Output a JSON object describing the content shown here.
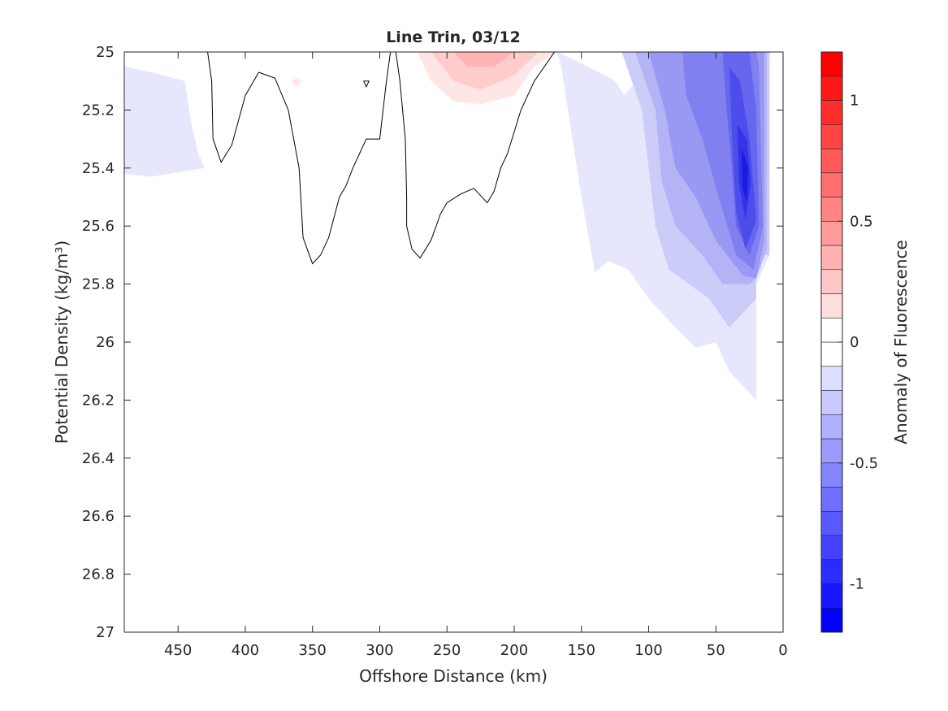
{
  "chart_data": {
    "type": "heatmap",
    "title": "Line Trin, 03/12",
    "xlabel": "Offshore Distance (km)",
    "ylabel": "Potential Density (kg/m³)",
    "xlim": [
      490,
      0
    ],
    "ylim": [
      27,
      25
    ],
    "y_reversed": true,
    "x_reversed": true,
    "x_ticks": [
      450,
      400,
      350,
      300,
      250,
      200,
      150,
      100,
      50,
      0
    ],
    "x_tick_labels": [
      "450",
      "400",
      "350",
      "300",
      "250",
      "200",
      "150",
      "100",
      "50",
      "0"
    ],
    "y_ticks": [
      25,
      25.2,
      25.4,
      25.6,
      25.8,
      26,
      26.2,
      26.4,
      26.6,
      26.8,
      27
    ],
    "y_tick_labels": [
      "25",
      "25.2",
      "25.4",
      "25.6",
      "25.8",
      "26",
      "26.2",
      "26.4",
      "26.6",
      "26.8",
      "27"
    ],
    "grid": false,
    "colorbar": {
      "label": "Anomaly of Fluorescence",
      "range": [
        -1.2,
        1.2
      ],
      "ticks": [
        1,
        0.5,
        0,
        -0.5,
        -1
      ],
      "tick_labels": [
        "1",
        "0.5",
        "0",
        "-0.5",
        "-1"
      ],
      "levels": [
        -1.2,
        -1.1,
        -1.0,
        -0.9,
        -0.8,
        -0.7,
        -0.6,
        -0.5,
        -0.4,
        -0.3,
        -0.2,
        -0.1,
        0,
        0.1,
        0.2,
        0.3,
        0.4,
        0.5,
        0.6,
        0.7,
        0.8,
        0.9,
        1.0,
        1.1,
        1.2
      ],
      "colormap": "blue-white-red"
    },
    "filled_regions": [
      {
        "level": -0.1,
        "color": "#e6e6fc",
        "points": [
          [
            490,
            25.05
          ],
          [
            470,
            25.07
          ],
          [
            445,
            25.1
          ],
          [
            440,
            25.25
          ],
          [
            435,
            25.35
          ],
          [
            430,
            25.4
          ],
          [
            470,
            25.43
          ],
          [
            490,
            25.42
          ]
        ]
      },
      {
        "level": 0.1,
        "color": "#ffe6e6",
        "points": [
          [
            272,
            25.0
          ],
          [
            168,
            25.0
          ],
          [
            185,
            25.05
          ],
          [
            200,
            25.15
          ],
          [
            225,
            25.18
          ],
          [
            245,
            25.17
          ],
          [
            262,
            25.1
          ]
        ]
      },
      {
        "level": 0.2,
        "color": "#ffcccc",
        "points": [
          [
            262,
            25.0
          ],
          [
            182,
            25.0
          ],
          [
            200,
            25.08
          ],
          [
            225,
            25.13
          ],
          [
            245,
            25.1
          ]
        ]
      },
      {
        "level": 0.3,
        "color": "#ffb3b3",
        "points": [
          [
            245,
            25.0
          ],
          [
            200,
            25.0
          ],
          [
            215,
            25.05
          ],
          [
            235,
            25.05
          ]
        ]
      },
      {
        "level": 0.1,
        "color": "#ffe6e6",
        "points": [
          [
            362,
            25.09
          ],
          [
            358,
            25.1
          ],
          [
            362,
            25.12
          ],
          [
            366,
            25.1
          ]
        ]
      },
      {
        "level": -0.1,
        "color": "#e6e6fc",
        "points": [
          [
            168,
            25.0
          ],
          [
            145,
            25.05
          ],
          [
            125,
            25.1
          ],
          [
            118,
            25.15
          ],
          [
            100,
            25.05
          ],
          [
            85,
            25.0
          ],
          [
            10,
            25.0
          ],
          [
            10,
            25.7
          ],
          [
            20,
            25.8
          ],
          [
            20,
            26.2
          ],
          [
            40,
            26.1
          ],
          [
            50,
            26.0
          ],
          [
            65,
            26.02
          ],
          [
            80,
            25.95
          ],
          [
            100,
            25.85
          ],
          [
            115,
            25.75
          ],
          [
            130,
            25.72
          ],
          [
            140,
            25.76
          ],
          [
            150,
            25.5
          ],
          [
            160,
            25.2
          ],
          [
            165,
            25.05
          ]
        ]
      },
      {
        "level": -0.2,
        "color": "#ccccf9",
        "points": [
          [
            120,
            25.0
          ],
          [
            105,
            25.2
          ],
          [
            100,
            25.4
          ],
          [
            95,
            25.6
          ],
          [
            85,
            25.75
          ],
          [
            70,
            25.8
          ],
          [
            55,
            25.85
          ],
          [
            40,
            25.95
          ],
          [
            20,
            25.85
          ],
          [
            20,
            25.7
          ],
          [
            10,
            25.7
          ],
          [
            10,
            25.0
          ]
        ]
      },
      {
        "level": -0.3,
        "color": "#b3b3f6",
        "points": [
          [
            110,
            25.0
          ],
          [
            95,
            25.2
          ],
          [
            90,
            25.45
          ],
          [
            80,
            25.6
          ],
          [
            60,
            25.7
          ],
          [
            45,
            25.8
          ],
          [
            25,
            25.8
          ],
          [
            20,
            25.78
          ],
          [
            12,
            25.68
          ],
          [
            12,
            25.0
          ]
        ]
      },
      {
        "level": -0.4,
        "color": "#9999f3",
        "points": [
          [
            100,
            25.0
          ],
          [
            88,
            25.2
          ],
          [
            80,
            25.4
          ],
          [
            65,
            25.5
          ],
          [
            50,
            25.65
          ],
          [
            30,
            25.77
          ],
          [
            20,
            25.78
          ],
          [
            14,
            25.65
          ],
          [
            14,
            25.0
          ]
        ]
      },
      {
        "level": -0.5,
        "color": "#8080f0",
        "points": [
          [
            75,
            25.0
          ],
          [
            72,
            25.15
          ],
          [
            60,
            25.3
          ],
          [
            48,
            25.5
          ],
          [
            35,
            25.7
          ],
          [
            22,
            25.75
          ],
          [
            15,
            25.6
          ],
          [
            18,
            25.05
          ],
          [
            20,
            25.0
          ]
        ]
      },
      {
        "level": -0.6,
        "color": "#6666ee",
        "points": [
          [
            45,
            25.0
          ],
          [
            42,
            25.2
          ],
          [
            38,
            25.4
          ],
          [
            35,
            25.6
          ],
          [
            25,
            25.7
          ],
          [
            18,
            25.6
          ],
          [
            20,
            25.2
          ],
          [
            25,
            25.0
          ]
        ]
      },
      {
        "level": -0.7,
        "color": "#4d4deb",
        "points": [
          [
            40,
            25.05
          ],
          [
            38,
            25.3
          ],
          [
            35,
            25.55
          ],
          [
            28,
            25.68
          ],
          [
            20,
            25.58
          ],
          [
            25,
            25.3
          ],
          [
            32,
            25.1
          ]
        ]
      },
      {
        "level": -0.8,
        "color": "#3333e8",
        "points": [
          [
            34,
            25.25
          ],
          [
            33,
            25.45
          ],
          [
            28,
            25.58
          ],
          [
            24,
            25.45
          ],
          [
            27,
            25.3
          ]
        ]
      },
      {
        "level": -0.9,
        "color": "#1a1ae5",
        "points": [
          [
            31,
            25.33
          ],
          [
            30,
            25.47
          ],
          [
            27,
            25.52
          ],
          [
            26,
            25.4
          ]
        ]
      }
    ],
    "zero_contours": [
      [
        [
          428,
          25.0
        ],
        [
          425,
          25.1
        ],
        [
          424,
          25.3
        ],
        [
          418,
          25.38
        ],
        [
          410,
          25.32
        ],
        [
          400,
          25.15
        ],
        [
          390,
          25.07
        ],
        [
          378,
          25.09
        ],
        [
          368,
          25.2
        ],
        [
          360,
          25.4
        ],
        [
          357,
          25.64
        ],
        [
          350,
          25.73
        ],
        [
          344,
          25.7
        ],
        [
          338,
          25.64
        ],
        [
          330,
          25.5
        ],
        [
          325,
          25.46
        ],
        [
          320,
          25.4
        ],
        [
          315,
          25.35
        ],
        [
          310,
          25.3
        ],
        [
          300,
          25.3
        ],
        [
          295,
          25.1
        ],
        [
          292,
          25.0
        ]
      ],
      [
        [
          288,
          25.0
        ],
        [
          285,
          25.1
        ],
        [
          283,
          25.2
        ],
        [
          281,
          25.3
        ],
        [
          280,
          25.5
        ],
        [
          280,
          25.6
        ],
        [
          276,
          25.68
        ],
        [
          270,
          25.71
        ],
        [
          262,
          25.65
        ],
        [
          258,
          25.6
        ],
        [
          255,
          25.56
        ],
        [
          250,
          25.52
        ],
        [
          240,
          25.49
        ],
        [
          230,
          25.47
        ],
        [
          220,
          25.52
        ],
        [
          215,
          25.48
        ],
        [
          210,
          25.4
        ],
        [
          205,
          25.35
        ],
        [
          195,
          25.2
        ],
        [
          185,
          25.1
        ],
        [
          170,
          25.0
        ]
      ],
      [
        [
          312,
          25.1
        ],
        [
          308,
          25.1
        ],
        [
          310,
          25.12
        ],
        [
          312,
          25.1
        ]
      ]
    ]
  }
}
